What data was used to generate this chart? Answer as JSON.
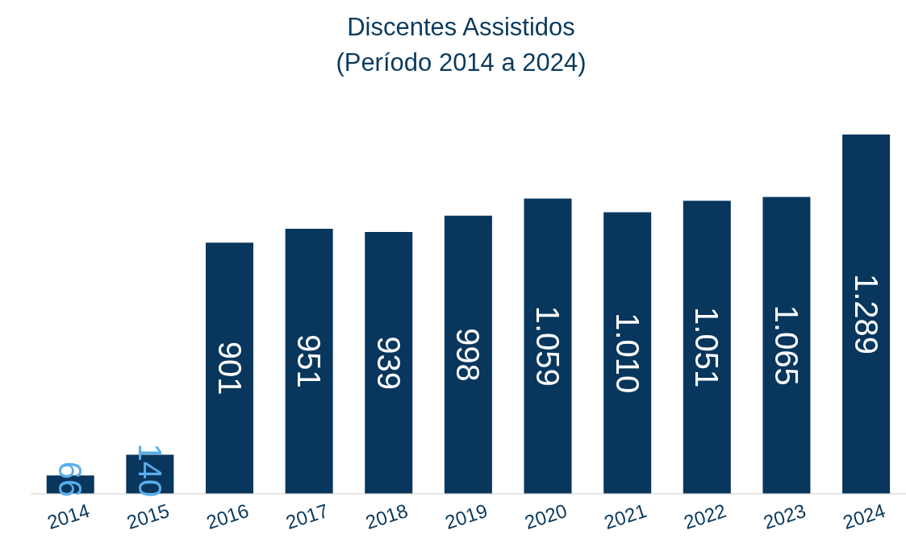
{
  "chart_data": {
    "type": "bar",
    "title": "Discentes Assistidos",
    "subtitle": "(Período 2014 a 2024)",
    "categories": [
      "2014",
      "2015",
      "2016",
      "2017",
      "2018",
      "2019",
      "2020",
      "2021",
      "2022",
      "2023",
      "2024"
    ],
    "values": [
      66,
      140,
      901,
      951,
      939,
      998,
      1059,
      1010,
      1051,
      1065,
      1289
    ],
    "value_labels": [
      "66",
      "140",
      "901",
      "951",
      "939",
      "998",
      "1.059",
      "1.010",
      "1.051",
      "1.065",
      "1.289"
    ],
    "color": "#08365c",
    "grid": false,
    "legend": false
  }
}
